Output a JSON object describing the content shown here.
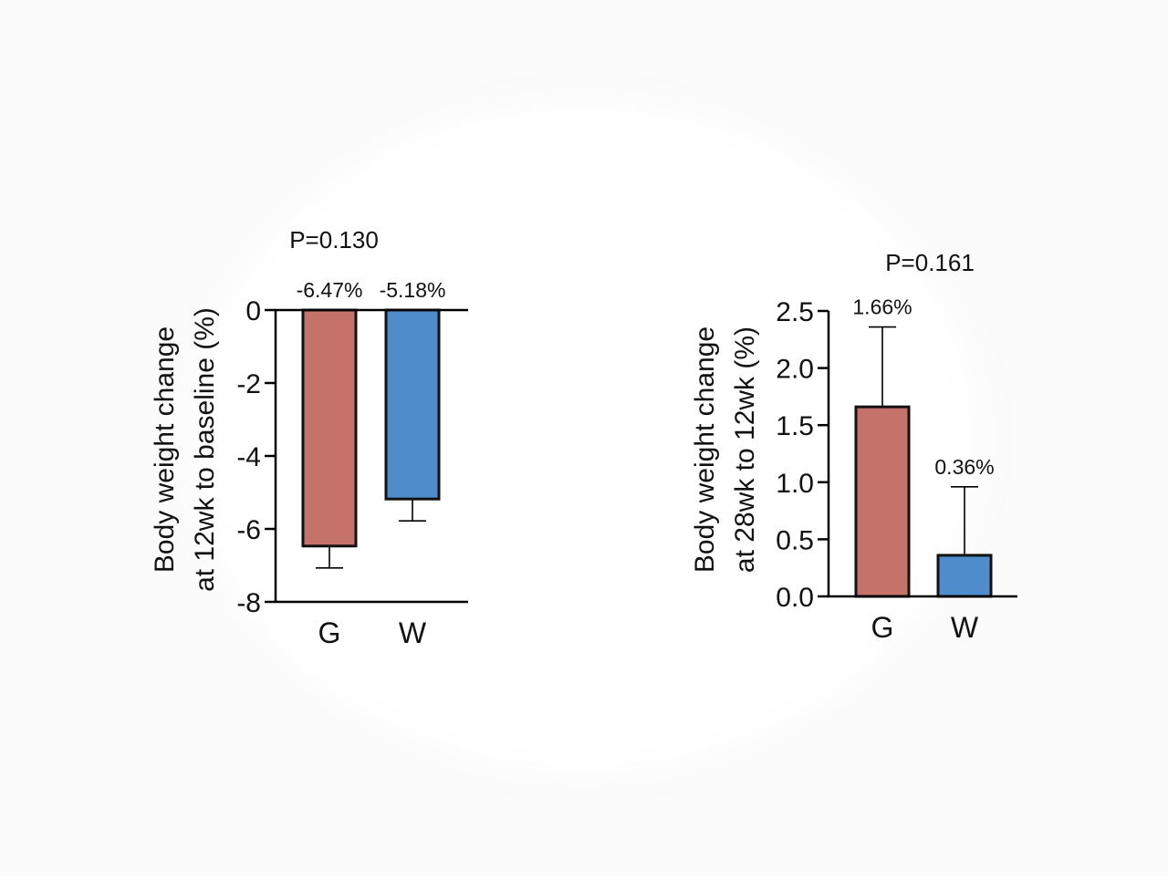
{
  "colors": {
    "G": "#c5736a",
    "W": "#4f8ccc",
    "axis": "#000000"
  },
  "chart_data": [
    {
      "type": "bar",
      "title": "P=0.130",
      "xlabel": "",
      "ylabel_lines": [
        "Body weight change",
        "at 12wk to baseline (%)"
      ],
      "categories": [
        "G",
        "W"
      ],
      "values": [
        -6.47,
        -5.18
      ],
      "error": [
        0.6,
        0.6
      ],
      "data_labels": [
        "-6.47%",
        "-5.18%"
      ],
      "ylim": [
        -8,
        0
      ],
      "yticks": [
        0,
        -2,
        -4,
        -6,
        -8
      ],
      "ytick_labels": [
        "0",
        "-2",
        "-4",
        "-6",
        "-8"
      ]
    },
    {
      "type": "bar",
      "title": "P=0.161",
      "xlabel": "",
      "ylabel_lines": [
        "Body weight change",
        "at 28wk to 12wk (%)"
      ],
      "categories": [
        "G",
        "W"
      ],
      "values": [
        1.66,
        0.36
      ],
      "error": [
        0.7,
        0.6
      ],
      "data_labels": [
        "1.66%",
        "0.36%"
      ],
      "ylim": [
        0,
        2.5
      ],
      "yticks": [
        0,
        0.5,
        1.0,
        1.5,
        2.0,
        2.5
      ],
      "ytick_labels": [
        "0.0",
        "0.5",
        "1.0",
        "1.5",
        "2.0",
        "2.5"
      ]
    }
  ]
}
